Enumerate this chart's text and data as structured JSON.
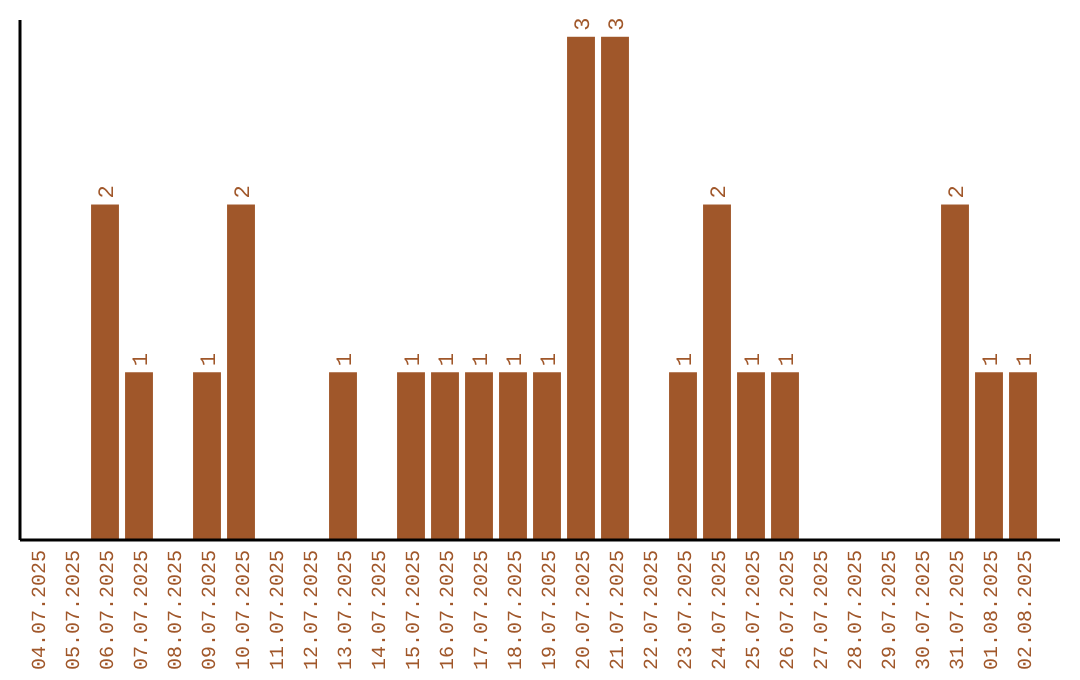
{
  "chart_data": {
    "type": "bar",
    "categories": [
      "04.07.2025",
      "05.07.2025",
      "06.07.2025",
      "07.07.2025",
      "08.07.2025",
      "09.07.2025",
      "10.07.2025",
      "11.07.2025",
      "12.07.2025",
      "13.07.2025",
      "14.07.2025",
      "15.07.2025",
      "16.07.2025",
      "17.07.2025",
      "18.07.2025",
      "19.07.2025",
      "20.07.2025",
      "21.07.2025",
      "22.07.2025",
      "23.07.2025",
      "24.07.2025",
      "25.07.2025",
      "26.07.2025",
      "27.07.2025",
      "28.07.2025",
      "29.07.2025",
      "30.07.2025",
      "31.07.2025",
      "01.08.2025",
      "02.08.2025"
    ],
    "values": [
      0,
      0,
      2,
      1,
      0,
      1,
      2,
      0,
      0,
      1,
      0,
      1,
      1,
      1,
      1,
      1,
      3,
      3,
      0,
      1,
      2,
      1,
      1,
      0,
      0,
      0,
      0,
      2,
      1,
      1
    ],
    "value_labels": [
      null,
      null,
      "2",
      "1",
      null,
      "1",
      "2",
      null,
      null,
      "1",
      null,
      "1",
      "1",
      "1",
      "1",
      "1",
      "3",
      "3",
      null,
      "1",
      "2",
      "1",
      "1",
      null,
      null,
      null,
      null,
      "2",
      "1",
      "1"
    ],
    "color": "#a0572a",
    "ylim": [
      0,
      3.1
    ],
    "tick_labels": "x"
  }
}
